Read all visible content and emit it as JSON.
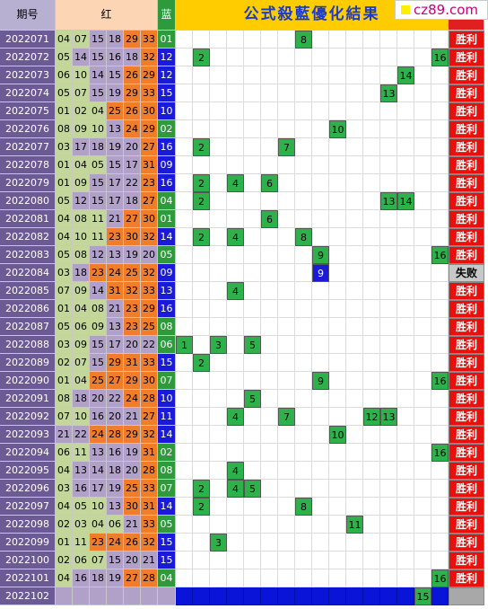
{
  "header": {
    "period": "期号",
    "red": "红",
    "blue": "蓝",
    "title": "公式殺藍優化結果",
    "watermark": "cz89.com"
  },
  "rows": [
    {
      "period": "2022071",
      "red": [
        "04",
        "07",
        "15",
        "18",
        "29",
        "33"
      ],
      "blue": "01",
      "marks": [
        8
      ],
      "result": "胜利"
    },
    {
      "period": "2022072",
      "red": [
        "05",
        "14",
        "15",
        "16",
        "18",
        "32"
      ],
      "blue": "12",
      "marks": [
        2,
        16
      ],
      "result": "胜利"
    },
    {
      "period": "2022073",
      "red": [
        "06",
        "10",
        "14",
        "15",
        "26",
        "29"
      ],
      "blue": "12",
      "marks": [
        14
      ],
      "result": "胜利"
    },
    {
      "period": "2022074",
      "red": [
        "05",
        "07",
        "15",
        "19",
        "29",
        "33"
      ],
      "blue": "15",
      "marks": [
        13
      ],
      "result": "胜利"
    },
    {
      "period": "2022075",
      "red": [
        "01",
        "02",
        "04",
        "25",
        "26",
        "30"
      ],
      "blue": "10",
      "marks": [],
      "result": "胜利"
    },
    {
      "period": "2022076",
      "red": [
        "08",
        "09",
        "10",
        "13",
        "24",
        "29"
      ],
      "blue": "02",
      "marks": [
        10
      ],
      "result": "胜利"
    },
    {
      "period": "2022077",
      "red": [
        "03",
        "17",
        "18",
        "19",
        "20",
        "27"
      ],
      "blue": "16",
      "marks": [
        2,
        7
      ],
      "result": "胜利"
    },
    {
      "period": "2022078",
      "red": [
        "01",
        "04",
        "05",
        "15",
        "17",
        "31"
      ],
      "blue": "09",
      "marks": [],
      "result": "胜利"
    },
    {
      "period": "2022079",
      "red": [
        "01",
        "09",
        "15",
        "17",
        "22",
        "23"
      ],
      "blue": "16",
      "marks": [
        2,
        4,
        6
      ],
      "result": "胜利"
    },
    {
      "period": "2022080",
      "red": [
        "05",
        "12",
        "15",
        "17",
        "18",
        "27"
      ],
      "blue": "04",
      "marks": [
        2,
        13,
        14
      ],
      "result": "胜利"
    },
    {
      "period": "2022081",
      "red": [
        "04",
        "08",
        "11",
        "21",
        "27",
        "30"
      ],
      "blue": "01",
      "marks": [
        6
      ],
      "result": "胜利"
    },
    {
      "period": "2022082",
      "red": [
        "04",
        "10",
        "11",
        "23",
        "30",
        "32"
      ],
      "blue": "14",
      "marks": [
        2,
        4,
        8
      ],
      "result": "胜利"
    },
    {
      "period": "2022083",
      "red": [
        "05",
        "08",
        "12",
        "13",
        "19",
        "20"
      ],
      "blue": "05",
      "marks": [
        9,
        16
      ],
      "result": "胜利"
    },
    {
      "period": "2022084",
      "red": [
        "03",
        "18",
        "23",
        "24",
        "25",
        "32"
      ],
      "blue": "09",
      "marks": [
        9
      ],
      "result": "失败"
    },
    {
      "period": "2022085",
      "red": [
        "07",
        "09",
        "14",
        "31",
        "32",
        "33"
      ],
      "blue": "13",
      "marks": [
        4
      ],
      "result": "胜利"
    },
    {
      "period": "2022086",
      "red": [
        "01",
        "04",
        "08",
        "21",
        "23",
        "29"
      ],
      "blue": "16",
      "marks": [],
      "result": "胜利"
    },
    {
      "period": "2022087",
      "red": [
        "05",
        "06",
        "09",
        "13",
        "23",
        "25"
      ],
      "blue": "08",
      "marks": [],
      "result": "胜利"
    },
    {
      "period": "2022088",
      "red": [
        "03",
        "09",
        "15",
        "17",
        "20",
        "22"
      ],
      "blue": "06",
      "marks": [
        1,
        3,
        5
      ],
      "result": "胜利"
    },
    {
      "period": "2022089",
      "red": [
        "02",
        "07",
        "15",
        "29",
        "31",
        "33"
      ],
      "blue": "15",
      "marks": [
        2
      ],
      "result": "胜利"
    },
    {
      "period": "2022090",
      "red": [
        "01",
        "04",
        "25",
        "27",
        "29",
        "30"
      ],
      "blue": "07",
      "marks": [
        9,
        16
      ],
      "result": "胜利"
    },
    {
      "period": "2022091",
      "red": [
        "08",
        "18",
        "20",
        "22",
        "24",
        "28"
      ],
      "blue": "10",
      "marks": [
        5
      ],
      "result": "胜利"
    },
    {
      "period": "2022092",
      "red": [
        "07",
        "10",
        "16",
        "20",
        "21",
        "27"
      ],
      "blue": "11",
      "marks": [
        4,
        7,
        12,
        13
      ],
      "result": "胜利"
    },
    {
      "period": "2022093",
      "red": [
        "21",
        "22",
        "24",
        "28",
        "29",
        "32"
      ],
      "blue": "14",
      "marks": [
        10
      ],
      "result": "胜利"
    },
    {
      "period": "2022094",
      "red": [
        "06",
        "11",
        "13",
        "16",
        "19",
        "31"
      ],
      "blue": "02",
      "marks": [
        16
      ],
      "result": "胜利"
    },
    {
      "period": "2022095",
      "red": [
        "04",
        "13",
        "14",
        "18",
        "20",
        "28"
      ],
      "blue": "08",
      "marks": [
        4
      ],
      "result": "胜利"
    },
    {
      "period": "2022096",
      "red": [
        "03",
        "16",
        "17",
        "19",
        "25",
        "33"
      ],
      "blue": "07",
      "marks": [
        2,
        4,
        5
      ],
      "result": "胜利"
    },
    {
      "period": "2022097",
      "red": [
        "04",
        "05",
        "10",
        "13",
        "30",
        "31"
      ],
      "blue": "14",
      "marks": [
        2,
        8
      ],
      "result": "胜利"
    },
    {
      "period": "2022098",
      "red": [
        "02",
        "03",
        "04",
        "06",
        "21",
        "33"
      ],
      "blue": "05",
      "marks": [
        11
      ],
      "result": "胜利"
    },
    {
      "period": "2022099",
      "red": [
        "01",
        "11",
        "23",
        "24",
        "26",
        "32"
      ],
      "blue": "15",
      "marks": [
        3
      ],
      "result": "胜利"
    },
    {
      "period": "2022100",
      "red": [
        "02",
        "06",
        "07",
        "15",
        "20",
        "21"
      ],
      "blue": "15",
      "marks": [],
      "result": "胜利"
    },
    {
      "period": "2022101",
      "red": [
        "04",
        "16",
        "18",
        "19",
        "27",
        "28"
      ],
      "blue": "04",
      "marks": [
        16
      ],
      "result": "胜利"
    },
    {
      "period": "2022102",
      "marks": [
        15
      ]
    }
  ]
}
